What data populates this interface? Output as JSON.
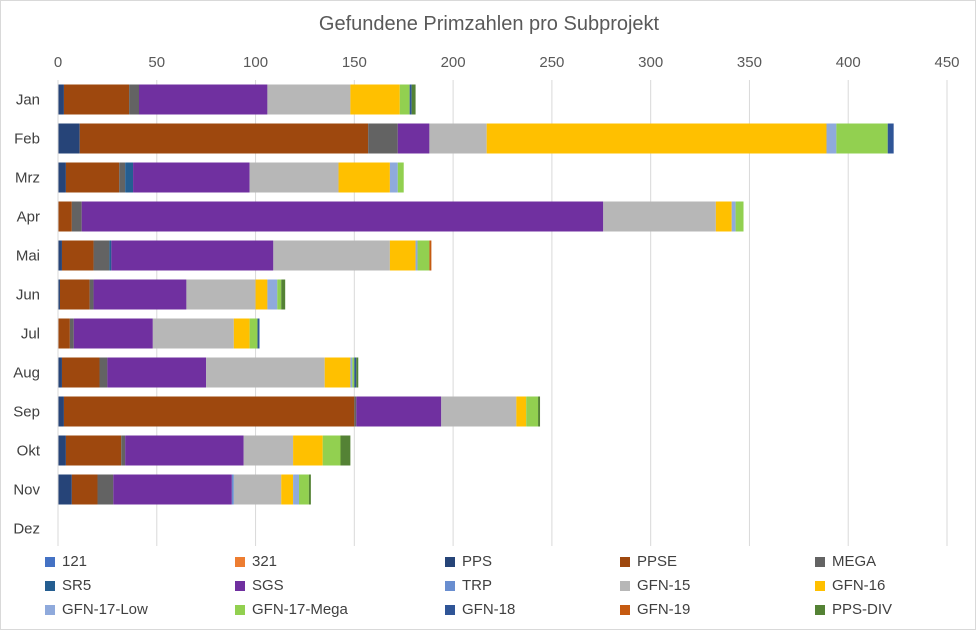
{
  "chart_data": {
    "type": "bar",
    "orientation": "horizontal",
    "stacked": true,
    "title": "Gefundene Primzahlen pro Subprojekt",
    "xlim": [
      0,
      450
    ],
    "x_ticks": [
      "0",
      "50",
      "100",
      "150",
      "200",
      "250",
      "300",
      "350",
      "400",
      "450"
    ],
    "x_axis_position": "top",
    "grid": "vertical",
    "legend_position": "bottom",
    "categories": [
      "Jan",
      "Feb",
      "Mrz",
      "Apr",
      "Mai",
      "Jun",
      "Jul",
      "Aug",
      "Sep",
      "Okt",
      "Nov",
      "Dez"
    ],
    "series": [
      {
        "name": "121",
        "color": "#4472C4",
        "values": [
          0,
          0,
          0,
          0,
          0,
          0,
          0,
          0,
          0,
          0,
          0,
          0
        ]
      },
      {
        "name": "321",
        "color": "#ED7D31",
        "values": [
          0,
          0,
          0,
          0,
          0,
          0,
          0,
          0,
          0,
          0,
          0,
          0
        ]
      },
      {
        "name": "PPS",
        "color": "#264478",
        "values": [
          3,
          11,
          4,
          0,
          2,
          1,
          0,
          2,
          3,
          4,
          7,
          0
        ]
      },
      {
        "name": "PPSE",
        "color": "#9E480E",
        "values": [
          33,
          146,
          27,
          7,
          16,
          15,
          6,
          19,
          147,
          28,
          13,
          0
        ]
      },
      {
        "name": "MEGA",
        "color": "#636363",
        "values": [
          5,
          15,
          3,
          5,
          8,
          2,
          2,
          4,
          1,
          2,
          8,
          0
        ]
      },
      {
        "name": "SR5",
        "color": "#255E91",
        "values": [
          0,
          0,
          4,
          0,
          1,
          0,
          0,
          0,
          0,
          0,
          0,
          0
        ]
      },
      {
        "name": "SGS",
        "color": "#7030A0",
        "values": [
          65,
          16,
          59,
          264,
          82,
          47,
          40,
          50,
          43,
          60,
          60,
          0
        ]
      },
      {
        "name": "TRP",
        "color": "#698ED0",
        "values": [
          0,
          0,
          0,
          0,
          0,
          0,
          0,
          0,
          0,
          0,
          1,
          0
        ]
      },
      {
        "name": "GFN-15",
        "color": "#B7B7B7",
        "values": [
          42,
          29,
          45,
          57,
          59,
          35,
          41,
          60,
          38,
          25,
          24,
          0
        ]
      },
      {
        "name": "GFN-16",
        "color": "#FFC000",
        "values": [
          25,
          172,
          26,
          8,
          13,
          6,
          8,
          13,
          5,
          15,
          6,
          0
        ]
      },
      {
        "name": "GFN-17-Low",
        "color": "#8FAADC",
        "values": [
          0,
          5,
          4,
          2,
          1,
          5,
          0,
          1,
          0,
          0,
          3,
          0
        ]
      },
      {
        "name": "GFN-17-Mega",
        "color": "#92D050",
        "values": [
          5,
          26,
          3,
          4,
          6,
          2,
          4,
          1,
          6,
          9,
          5,
          0
        ]
      },
      {
        "name": "GFN-18",
        "color": "#2F5597",
        "values": [
          1,
          3,
          0,
          0,
          0,
          0,
          1,
          1,
          0,
          0,
          0,
          0
        ]
      },
      {
        "name": "GFN-19",
        "color": "#C55A11",
        "values": [
          0,
          0,
          0,
          0,
          1,
          0,
          0,
          0,
          0,
          0,
          0,
          0
        ]
      },
      {
        "name": "PPS-DIV",
        "color": "#548235",
        "values": [
          2,
          0,
          0,
          0,
          0,
          2,
          0,
          1,
          1,
          5,
          1,
          0
        ]
      }
    ]
  }
}
